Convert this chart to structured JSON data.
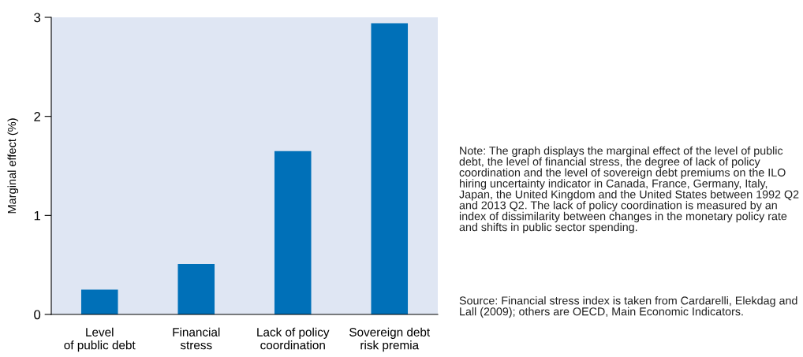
{
  "chart_data": {
    "type": "bar",
    "ylabel": "Marginal effect (%)",
    "categories": [
      "Level\nof public debt",
      "Financial\nstress",
      "Lack of policy\ncoordination",
      "Sovereign debt\nrisk premia"
    ],
    "values": [
      0.25,
      0.51,
      1.65,
      2.94
    ],
    "color": "#0070b8",
    "ylim": [
      0,
      3
    ],
    "yticks": [
      0,
      1,
      2,
      3
    ],
    "grid": false,
    "annotations": [
      "Note: The graph displays the marginal effect of the level of public debt, the level of financial stress, the degree of lack of policy coordination and the level of sovereign debt premiums on the ILO hiring uncertainty indicator in Canada, France, Germany, Italy, Japan, the United Kingdom and the United States between 1992 Q2 and 2013 Q2. The lack of policy coordination is measured by an index of dissimilarity between changes in the monetary policy rate and shifts in public sector spending.",
      "Source: Financial stress index is taken from Cardarelli, Elekdag and Lall (2009); others are OECD, Main Economic Indicators."
    ]
  }
}
